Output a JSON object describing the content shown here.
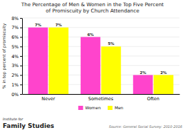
{
  "chart_data": {
    "type": "bar",
    "title": "The Percentage of Men & Women in the Top Five Percent\nof Promiscuity by Church Attendance",
    "categories": [
      "Never",
      "Sometimes",
      "Often"
    ],
    "series": [
      {
        "name": "Women",
        "color": "#FF44CC",
        "values": [
          7,
          6,
          2
        ],
        "value_labels": [
          "7%",
          "6%",
          "2%"
        ]
      },
      {
        "name": "Men",
        "color": "#FFFF00",
        "values": [
          7,
          5,
          2
        ],
        "value_labels": [
          "7%",
          "5%",
          "2%"
        ]
      }
    ],
    "ylabel": "% in top percent of promiscuity",
    "ylim": [
      0,
      8
    ],
    "yticks": [
      {
        "value": 0,
        "label": "0%"
      },
      {
        "value": 1,
        "label": "1%"
      },
      {
        "value": 2,
        "label": "2%"
      },
      {
        "value": 3,
        "label": "3%"
      },
      {
        "value": 4,
        "label": "4%"
      },
      {
        "value": 5,
        "label": "5%"
      },
      {
        "value": 6,
        "label": "6%"
      },
      {
        "value": 7,
        "label": "7%"
      },
      {
        "value": 8,
        "label": "8%"
      }
    ],
    "grid": true,
    "legend": "bottom",
    "data_labels": true,
    "annotations": [
      "Institute for",
      "Family Studies",
      "Source: General Social Survey: 2010-2016"
    ]
  }
}
